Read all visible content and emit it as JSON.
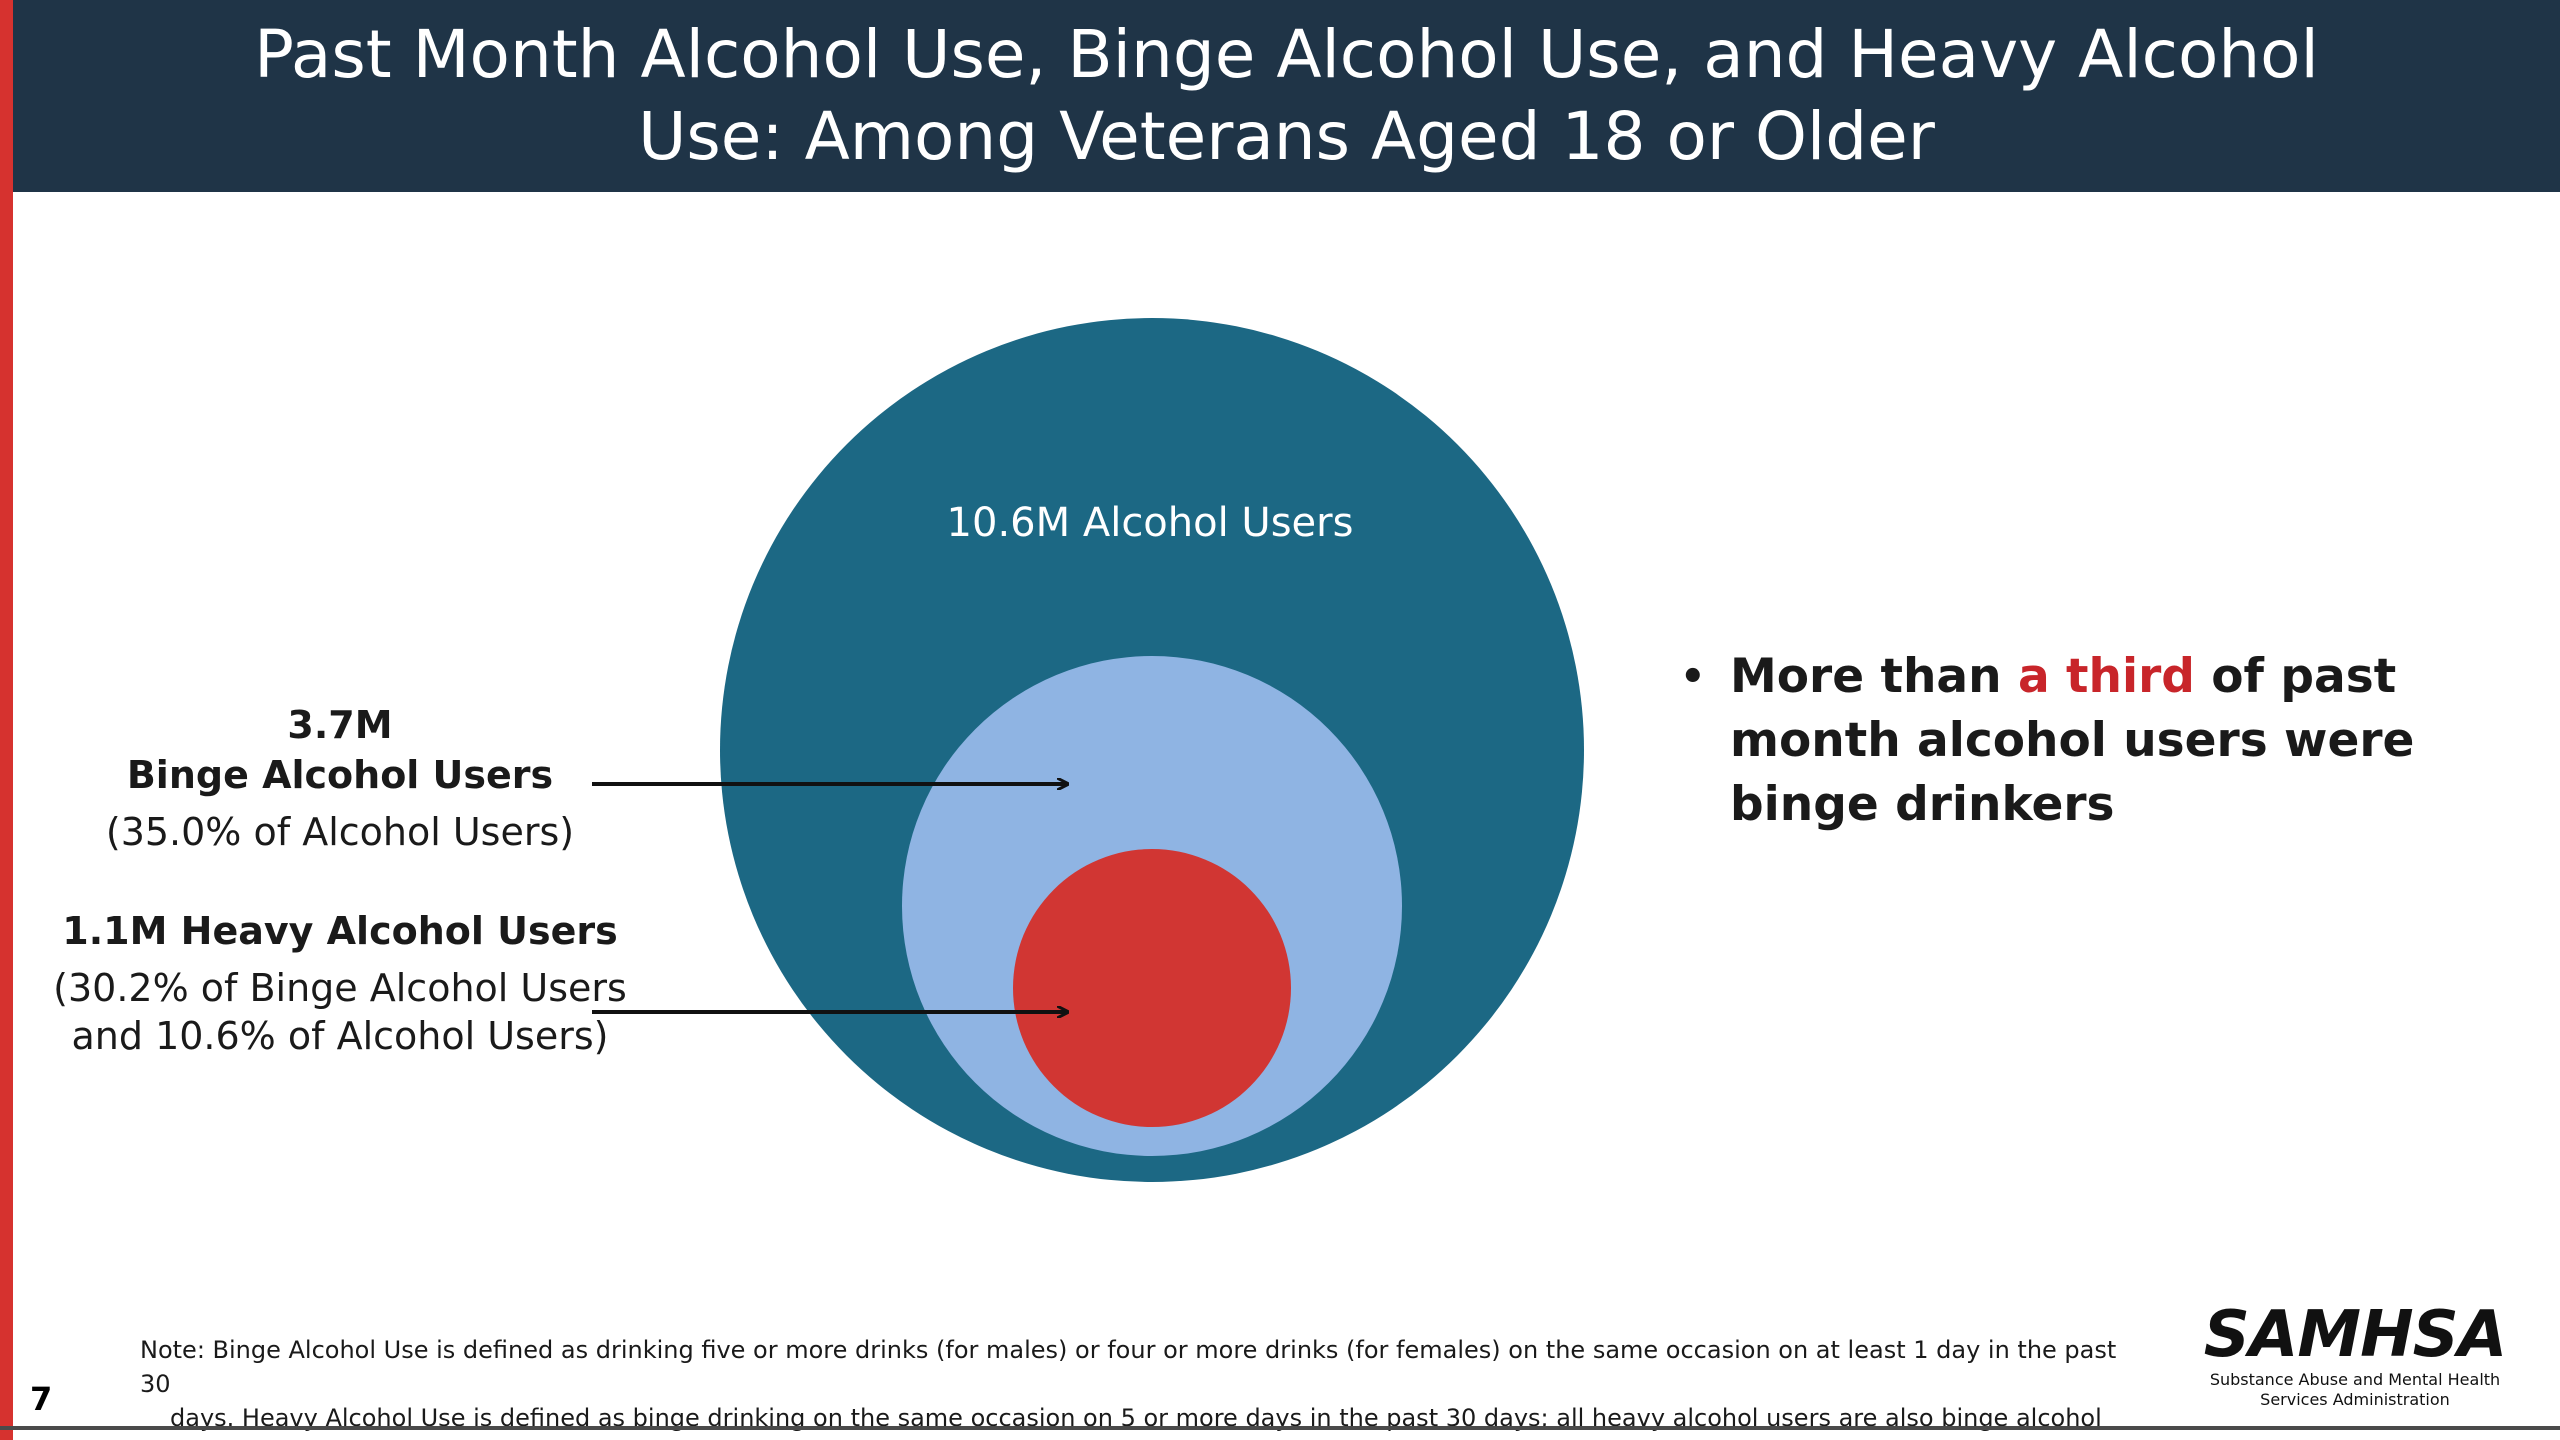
{
  "title": "Past Month Alcohol Use, Binge Alcohol Use, and Heavy Alcohol Use: Among Veterans Aged 18 or Older",
  "circles": {
    "alcohol_label": "10.6M Alcohol Users",
    "colors": {
      "alcohol": "#1c6884",
      "binge": "#8fb4e3",
      "heavy": "#d13633"
    }
  },
  "annotations": {
    "binge_count": "3.7M",
    "binge_label": "Binge Alcohol Users",
    "binge_pct": "(35.0% of Alcohol Users)",
    "heavy_label": "1.1M Heavy Alcohol Users",
    "heavy_pct": "(30.2% of Binge Alcohol Users and 10.6% of Alcohol Users)"
  },
  "bullet": {
    "before": "More than ",
    "highlight": "a third",
    "after": " of past month alcohol users were binge drinkers",
    "highlight_color": "#c8252a"
  },
  "note": {
    "line1": "Note: Binge Alcohol Use is defined as drinking five or more drinks (for males) or four or more drinks (for females) on the same occasion on at least 1 day in the past 30",
    "line2": "days. Heavy Alcohol Use is defined as binge drinking on the same occasion on 5 or more days in the past 30 days; all heavy alcohol users are also binge alcohol users."
  },
  "page_number": "7",
  "logo": {
    "wordmark": "SAMHSA",
    "tagline_1": "Substance Abuse and Mental Health",
    "tagline_2": "Services Administration"
  },
  "accent_color": "#d6322f",
  "title_bar_color": "#1f3447"
}
